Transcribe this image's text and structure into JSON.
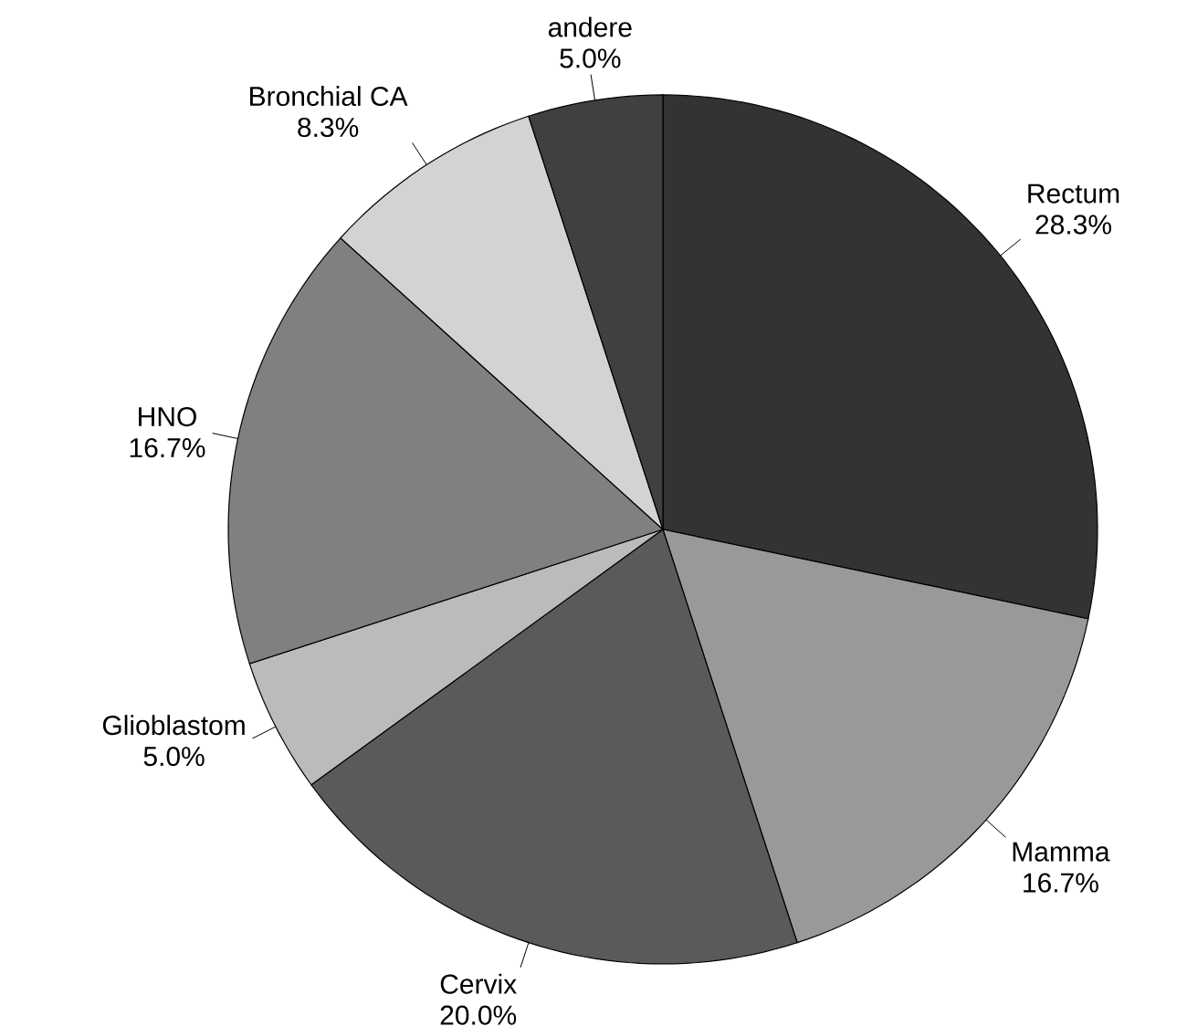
{
  "chart_data": {
    "type": "pie",
    "categories": [
      "Rectum",
      "Mamma",
      "Cervix",
      "Glioblastom",
      "HNO",
      "Bronchial CA",
      "andere"
    ],
    "values": [
      28.3,
      16.7,
      20.0,
      5.0,
      16.7,
      8.3,
      5.0
    ],
    "value_labels": [
      "28.3%",
      "16.7%",
      "20.0%",
      "5.0%",
      "16.7%",
      "8.3%",
      "5.0%"
    ],
    "colors": [
      "#333333",
      "#999999",
      "#5a5a5a",
      "#bbbbbb",
      "#808080",
      "#d3d3d3",
      "#404040"
    ]
  }
}
